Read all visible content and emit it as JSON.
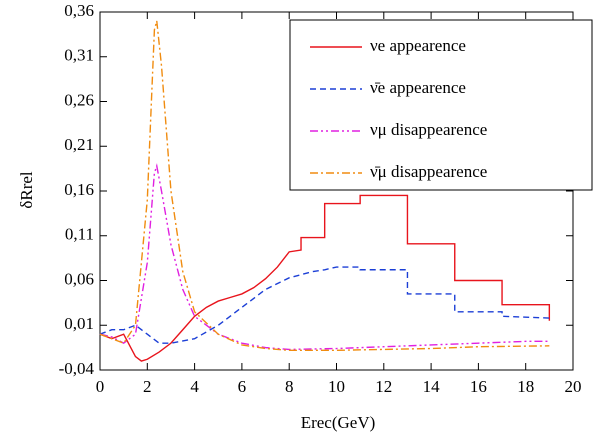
{
  "chart_data": {
    "type": "line",
    "xlabel": "Erec(GeV)",
    "ylabel": "δRrel",
    "xlim": [
      0,
      20
    ],
    "xticks": [
      0,
      2,
      4,
      6,
      8,
      10,
      12,
      14,
      16,
      18,
      20
    ],
    "ylim": [
      -0.04,
      0.36
    ],
    "yticks": [
      {
        "value": -0.04,
        "label": "-0,04"
      },
      {
        "value": 0.01,
        "label": "0,01"
      },
      {
        "value": 0.06,
        "label": "0,06"
      },
      {
        "value": 0.11,
        "label": "0,11"
      },
      {
        "value": 0.16,
        "label": "0,16"
      },
      {
        "value": 0.21,
        "label": "0,21"
      },
      {
        "value": 0.26,
        "label": "0,26"
      },
      {
        "value": 0.31,
        "label": "0,31"
      },
      {
        "value": 0.36,
        "label": "0,36"
      }
    ],
    "legend": "upper right",
    "series": [
      {
        "name": "νe appearence",
        "color": "#e8141c",
        "dash": "solid",
        "x": [
          0,
          0.5,
          1,
          1.5,
          1.75,
          2,
          2.5,
          3,
          3.5,
          4,
          4.5,
          5,
          5.5,
          6,
          6.5,
          7,
          7.5,
          8,
          8.5,
          8.5,
          9.5,
          9.5,
          11,
          11,
          13,
          13,
          15,
          15,
          17,
          17,
          19,
          19
        ],
        "values": [
          0,
          -0.005,
          0,
          -0.025,
          -0.03,
          -0.028,
          -0.02,
          -0.01,
          0.005,
          0.02,
          0.03,
          0.037,
          0.041,
          0.045,
          0.052,
          0.062,
          0.075,
          0.092,
          0.094,
          0.108,
          0.108,
          0.146,
          0.146,
          0.155,
          0.155,
          0.101,
          0.101,
          0.06,
          0.06,
          0.033,
          0.033,
          0.015
        ]
      },
      {
        "name": "ν̄e appearence",
        "color": "#1c3fd6",
        "dash": "dashed",
        "x": [
          0,
          0.5,
          1,
          1.5,
          2,
          2.5,
          3,
          4,
          5,
          6,
          7,
          8,
          9,
          9.5,
          10,
          11,
          11,
          13,
          13,
          15,
          15,
          17,
          17,
          19
        ],
        "values": [
          0,
          0.005,
          0.005,
          0.01,
          0,
          -0.01,
          -0.01,
          -0.005,
          0.01,
          0.03,
          0.05,
          0.063,
          0.07,
          0.072,
          0.075,
          0.075,
          0.072,
          0.072,
          0.045,
          0.045,
          0.025,
          0.025,
          0.02,
          0.018
        ]
      },
      {
        "name": "νμ disappearence",
        "color": "#e020e0",
        "dash": "dashdotdot",
        "x": [
          0,
          0.5,
          1,
          1.5,
          2,
          2.3,
          2.4,
          2.6,
          3,
          3.5,
          4,
          5,
          6,
          7,
          8,
          10,
          12,
          14,
          16,
          18,
          19
        ],
        "values": [
          0,
          -0.003,
          -0.01,
          0,
          0.08,
          0.18,
          0.188,
          0.16,
          0.1,
          0.05,
          0.02,
          0,
          -0.01,
          -0.015,
          -0.017,
          -0.016,
          -0.014,
          -0.012,
          -0.01,
          -0.008,
          -0.008
        ]
      },
      {
        "name": "ν̄μ disappearence",
        "color": "#f08c10",
        "dash": "dashdot",
        "x": [
          0,
          0.5,
          1,
          1.5,
          2,
          2.3,
          2.4,
          2.6,
          3,
          3.5,
          4,
          5,
          6,
          7,
          8,
          10,
          12,
          14,
          16,
          19
        ],
        "values": [
          0,
          -0.005,
          -0.01,
          0.01,
          0.15,
          0.34,
          0.35,
          0.3,
          0.16,
          0.07,
          0.025,
          0,
          -0.012,
          -0.016,
          -0.018,
          -0.018,
          -0.017,
          -0.016,
          -0.014,
          -0.013
        ]
      }
    ]
  }
}
